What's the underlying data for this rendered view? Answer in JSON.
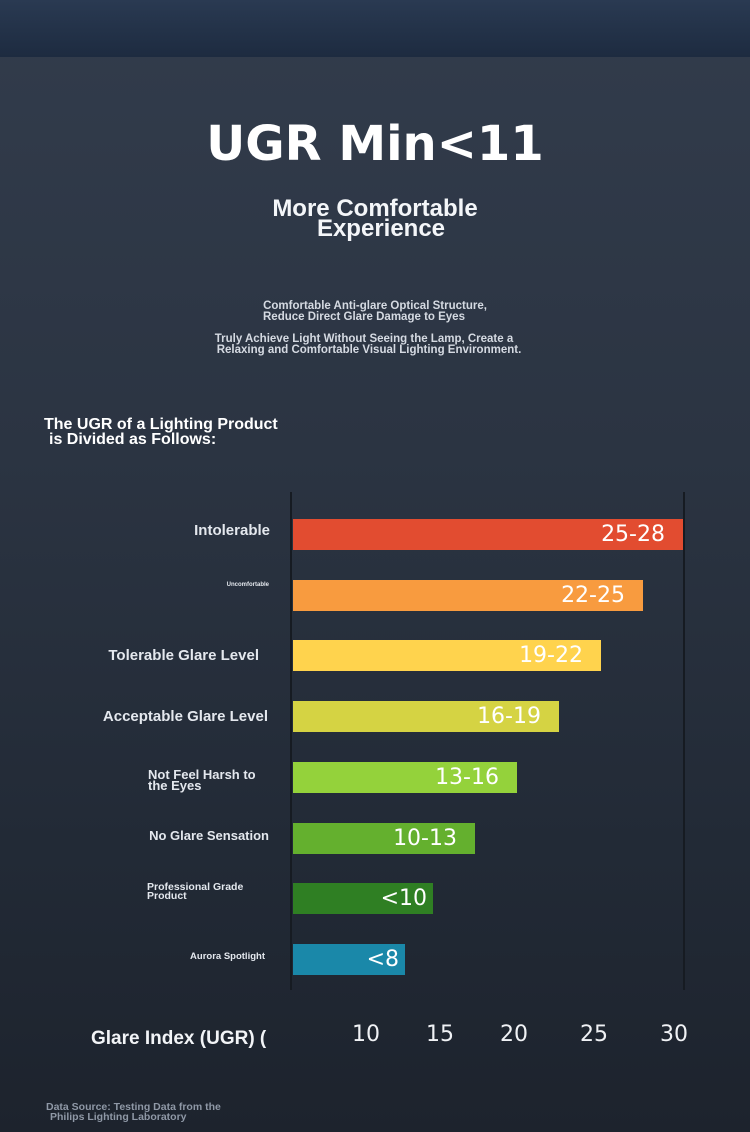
{
  "title": "UGR Min<11",
  "subtitle": [
    "More Comfortable",
    "Experience"
  ],
  "desc1": [
    "Comfortable Anti-glare Optical Structure,",
    "Reduce Direct Glare Damage to Eyes"
  ],
  "desc2": [
    "Truly Achieve Light Without Seeing the Lamp, Create a",
    "Relaxing and Comfortable Visual Lighting Environment."
  ],
  "intro": [
    "The UGR of a Lighting Product",
    "is Divided as Follows:"
  ],
  "source": [
    "Data Source: Testing Data from the",
    "Philips Lighting Laboratory"
  ],
  "chart_data": {
    "type": "bar",
    "orientation": "horizontal",
    "xlabel": "Glare Index (UGR) (",
    "x_ticks": [
      "10",
      "15",
      "20",
      "25",
      "30"
    ],
    "categories": [
      "Intolerable",
      "Uncomfortable",
      "Tolerable Glare Level",
      "Acceptable Glare Level",
      "Not Feel Harsh to the Eyes",
      "No Glare Sensation",
      "Professional Grade Product",
      "Aurora Spotlight"
    ],
    "value_labels": [
      "25-28",
      "22-25",
      "19-22",
      "16-19",
      "13-16",
      "10-13",
      "<10",
      "<8"
    ],
    "values": [
      28,
      25,
      22,
      19,
      16,
      13,
      10,
      8
    ],
    "colors": [
      "#e24c30",
      "#f89b3f",
      "#ffd34d",
      "#d5d343",
      "#94d23b",
      "#64b02e",
      "#2f7f23",
      "#1a88a9"
    ]
  }
}
